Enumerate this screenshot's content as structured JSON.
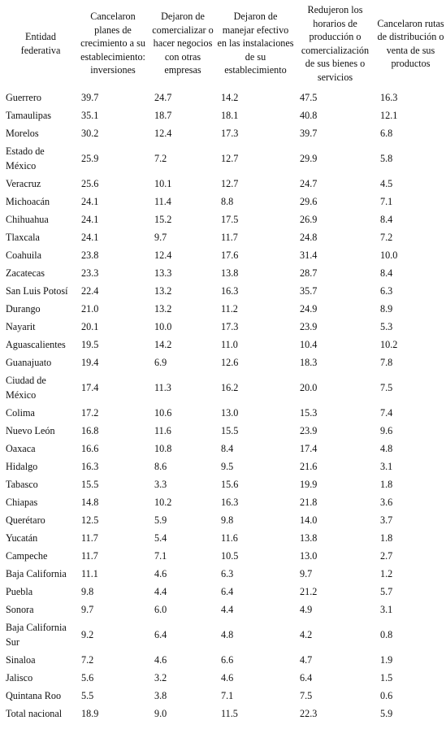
{
  "table": {
    "headers": [
      "Entidad federativa",
      "Cancelaron planes de crecimiento a su establecimiento: inversiones",
      "Dejaron de comercializar o hacer negocios con otras empresas",
      "Dejaron de manejar efectivo en las instalaciones de su establecimiento",
      "Redujeron los horarios de producción o comercialización de sus bienes o servicios",
      "Cancelaron rutas de distribución o venta de sus productos"
    ],
    "rows": [
      [
        "Guerrero",
        "39.7",
        "24.7",
        "14.2",
        "47.5",
        "16.3"
      ],
      [
        "Tamaulipas",
        "35.1",
        "18.7",
        "18.1",
        "40.8",
        "12.1"
      ],
      [
        "Morelos",
        "30.2",
        "12.4",
        "17.3",
        "39.7",
        "6.8"
      ],
      [
        "Estado de México",
        "25.9",
        "7.2",
        "12.7",
        "29.9",
        "5.8"
      ],
      [
        "Veracruz",
        "25.6",
        "10.1",
        "12.7",
        "24.7",
        "4.5"
      ],
      [
        "Michoacán",
        "24.1",
        "11.4",
        "8.8",
        "29.6",
        "7.1"
      ],
      [
        "Chihuahua",
        "24.1",
        "15.2",
        "17.5",
        "26.9",
        "8.4"
      ],
      [
        "Tlaxcala",
        "24.1",
        "9.7",
        "11.7",
        "24.8",
        "7.2"
      ],
      [
        "Coahuila",
        "23.8",
        "12.4",
        "17.6",
        "31.4",
        "10.0"
      ],
      [
        "Zacatecas",
        "23.3",
        "13.3",
        "13.8",
        "28.7",
        "8.4"
      ],
      [
        "San Luis Potosí",
        "22.4",
        "13.2",
        "16.3",
        "35.7",
        "6.3"
      ],
      [
        "Durango",
        "21.0",
        "13.2",
        "11.2",
        "24.9",
        "8.9"
      ],
      [
        "Nayarit",
        "20.1",
        "10.0",
        "17.3",
        "23.9",
        "5.3"
      ],
      [
        "Aguascalientes",
        "19.5",
        "14.2",
        "11.0",
        "10.4",
        "10.2"
      ],
      [
        "Guanajuato",
        "19.4",
        "6.9",
        "12.6",
        "18.3",
        "7.8"
      ],
      [
        "Ciudad de México",
        "17.4",
        "11.3",
        "16.2",
        "20.0",
        "7.5"
      ],
      [
        "Colima",
        "17.2",
        "10.6",
        "13.0",
        "15.3",
        "7.4"
      ],
      [
        "Nuevo León",
        "16.8",
        "11.6",
        "15.5",
        "23.9",
        "9.6"
      ],
      [
        "Oaxaca",
        "16.6",
        "10.8",
        "8.4",
        "17.4",
        "4.8"
      ],
      [
        "Hidalgo",
        "16.3",
        "8.6",
        "9.5",
        "21.6",
        "3.1"
      ],
      [
        "Tabasco",
        "15.5",
        "3.3",
        "15.6",
        "19.9",
        "1.8"
      ],
      [
        "Chiapas",
        "14.8",
        "10.2",
        "16.3",
        "21.8",
        "3.6"
      ],
      [
        "Querétaro",
        "12.5",
        "5.9",
        "9.8",
        "14.0",
        "3.7"
      ],
      [
        "Yucatán",
        "11.7",
        "5.4",
        "11.6",
        "13.8",
        "1.8"
      ],
      [
        "Campeche",
        "11.7",
        "7.1",
        "10.5",
        "13.0",
        "2.7"
      ],
      [
        "Baja California",
        "11.1",
        "4.6",
        "6.3",
        "9.7",
        "1.2"
      ],
      [
        "Puebla",
        "9.8",
        "4.4",
        "6.4",
        "21.2",
        "5.7"
      ],
      [
        "Sonora",
        "9.7",
        "6.0",
        "4.4",
        "4.9",
        "3.1"
      ],
      [
        "Baja California Sur",
        "9.2",
        "6.4",
        "4.8",
        "4.2",
        "0.8"
      ],
      [
        "Sinaloa",
        "7.2",
        "4.6",
        "6.6",
        "4.7",
        "1.9"
      ],
      [
        "Jalisco",
        "5.6",
        "3.2",
        "4.6",
        "6.4",
        "1.5"
      ],
      [
        "Quintana Roo",
        "5.5",
        "3.8",
        "7.1",
        "7.5",
        "0.6"
      ],
      [
        "Total nacional",
        "18.9",
        "9.0",
        "11.5",
        "22.3",
        "5.9"
      ]
    ]
  }
}
